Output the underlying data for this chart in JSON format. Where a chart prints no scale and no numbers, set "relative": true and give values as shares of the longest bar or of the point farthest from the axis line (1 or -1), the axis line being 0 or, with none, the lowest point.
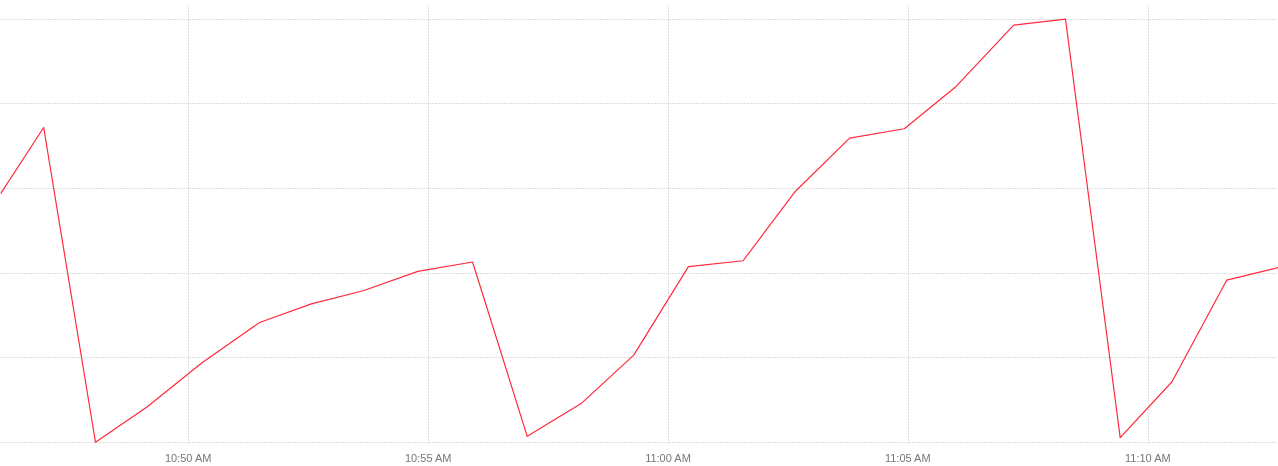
{
  "chart_data": {
    "type": "line",
    "relative": true,
    "x": [
      10.768,
      10.783,
      10.801,
      10.819,
      10.838,
      10.858,
      10.876,
      10.894,
      10.913,
      10.932,
      10.951,
      10.97,
      10.988,
      11.007,
      11.026,
      11.044,
      11.063,
      11.082,
      11.1,
      11.12,
      11.138,
      11.157,
      11.175,
      11.194,
      11.212
    ],
    "series": [
      {
        "color": "#ff2a3c",
        "values": [
          0.587,
          0.744,
          0,
          0.084,
          0.188,
          0.283,
          0.327,
          0.358,
          0.404,
          0.426,
          0.014,
          0.093,
          0.206,
          0.415,
          0.429,
          0.592,
          0.719,
          0.741,
          0.841,
          0.986,
          1,
          0.011,
          0.143,
          0.383,
          0.413
        ]
      }
    ],
    "xlim": [
      10.768,
      11.212
    ],
    "xticks": [
      {
        "value": 10.8333,
        "label": "10:50 AM"
      },
      {
        "value": 10.9167,
        "label": "10:55 AM"
      },
      {
        "value": 11.0,
        "label": "11:00 AM"
      },
      {
        "value": 11.0833,
        "label": "11:05 AM"
      },
      {
        "value": 11.1667,
        "label": "11:10 AM"
      }
    ],
    "grid": true,
    "marker": "none",
    "line_style": "solid"
  }
}
